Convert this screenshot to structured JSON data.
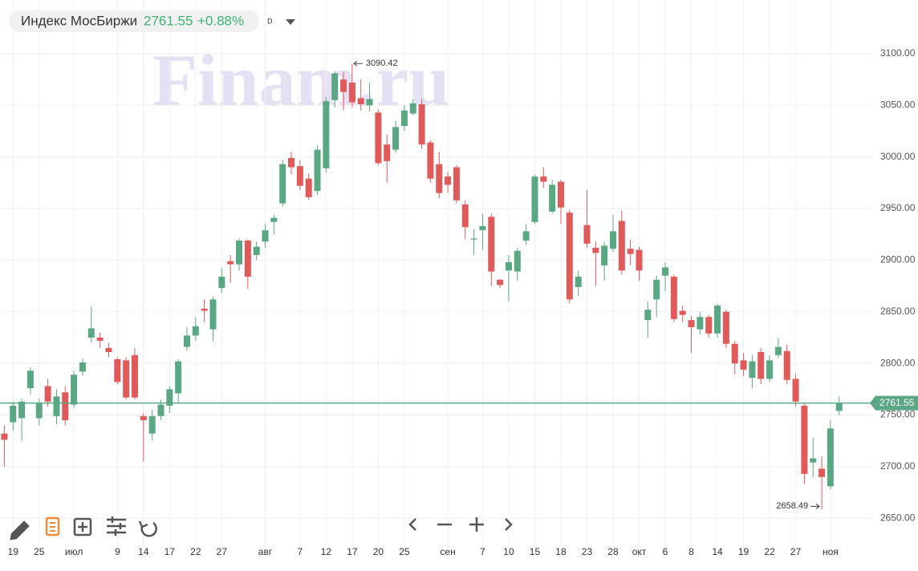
{
  "chart_data": {
    "type": "candlestick",
    "title": "Индекс МосБиржи",
    "price": "2761.55",
    "change": "+0.88%",
    "interval": "D",
    "watermark": "Finam.ru",
    "up_color": "#5aa883",
    "down_color": "#e05a5a",
    "grid": true,
    "xlim": [
      -0.5,
      97.5
    ],
    "ylim": [
      2630,
      3152
    ],
    "yticks": [
      {
        "value": 2650,
        "label": "2650.00"
      },
      {
        "value": 2700,
        "label": "2700.00"
      },
      {
        "value": 2750,
        "label": "2750.00"
      },
      {
        "value": 2800,
        "label": "2800.00"
      },
      {
        "value": 2850,
        "label": "2850.00"
      },
      {
        "value": 2900,
        "label": "2900.00"
      },
      {
        "value": 2950,
        "label": "2950.00"
      },
      {
        "value": 3000,
        "label": "3000.00"
      },
      {
        "value": 3050,
        "label": "3050.00"
      },
      {
        "value": 3100,
        "label": "3100.00"
      }
    ],
    "xticks": [
      {
        "value": 1,
        "label": "19"
      },
      {
        "value": 4,
        "label": "25"
      },
      {
        "value": 8,
        "label": "июл"
      },
      {
        "value": 13,
        "label": "9"
      },
      {
        "value": 16,
        "label": "14"
      },
      {
        "value": 19,
        "label": "17"
      },
      {
        "value": 22,
        "label": "22"
      },
      {
        "value": 25,
        "label": "27"
      },
      {
        "value": 30,
        "label": "авг"
      },
      {
        "value": 34,
        "label": "7"
      },
      {
        "value": 37,
        "label": "12"
      },
      {
        "value": 40,
        "label": "17"
      },
      {
        "value": 43,
        "label": "20"
      },
      {
        "value": 46,
        "label": "25"
      },
      {
        "value": 51,
        "label": "сен"
      },
      {
        "value": 55,
        "label": "7"
      },
      {
        "value": 58,
        "label": "10"
      },
      {
        "value": 61,
        "label": "15"
      },
      {
        "value": 64,
        "label": "18"
      },
      {
        "value": 67,
        "label": "23"
      },
      {
        "value": 70,
        "label": "28"
      },
      {
        "value": 73,
        "label": "окт"
      },
      {
        "value": 76,
        "label": "6"
      },
      {
        "value": 79,
        "label": "8"
      },
      {
        "value": 82,
        "label": "14"
      },
      {
        "value": 85,
        "label": "19"
      },
      {
        "value": 88,
        "label": "22"
      },
      {
        "value": 91,
        "label": "27"
      },
      {
        "value": 95,
        "label": "ноя"
      }
    ],
    "open": [
      2732,
      2743,
      2747,
      2776,
      2747,
      2778,
      2749,
      2772,
      2760,
      2792,
      2825,
      2825,
      2815,
      2804,
      2803,
      2808,
      2749,
      2732,
      2749,
      2759,
      2771,
      2816,
      2827,
      2853,
      2833,
      2873,
      2899,
      2896,
      2919,
      2905,
      2918,
      2937,
      2955,
      2999,
      2991,
      2979,
      2967,
      2989,
      3055,
      3075,
      3072,
      3057,
      3050,
      3043,
      3012,
      3007,
      3030,
      3042,
      3051,
      3014,
      2993,
      2981,
      2990,
      2954,
      2920,
      2929,
      2942,
      2881,
      2890,
      2889,
      2919,
      2937,
      2981,
      2947,
      2976,
      2946,
      2874,
      2934,
      2912,
      2895,
      2911,
      2938,
      2911,
      2910,
      2842,
      2862,
      2885,
      2884,
      2851,
      2842,
      2833,
      2845,
      2829,
      2850,
      2819,
      2803,
      2786,
      2811,
      2785,
      2808,
      2812,
      2785,
      2759,
      2704,
      2698,
      2681,
      2754
    ],
    "high": [
      2740,
      2763,
      2766,
      2796,
      2766,
      2785,
      2775,
      2778,
      2793,
      2805,
      2855,
      2830,
      2820,
      2806,
      2806,
      2815,
      2752,
      2755,
      2765,
      2778,
      2804,
      2835,
      2845,
      2862,
      2865,
      2892,
      2905,
      2921,
      2920,
      2918,
      2935,
      2944,
      2997,
      3005,
      2997,
      2984,
      3011,
      3058,
      3083,
      3082,
      3090.42,
      3075,
      3072,
      3046,
      3022,
      3035,
      3050,
      3056,
      3056,
      3016,
      3005,
      2985,
      2992,
      2958,
      2930,
      2945,
      2945,
      2882,
      2905,
      2912,
      2935,
      2983,
      2990,
      2978,
      2978,
      2949,
      2890,
      2968,
      2918,
      2918,
      2944,
      2948,
      2920,
      2913,
      2860,
      2885,
      2898,
      2886,
      2856,
      2846,
      2850,
      2847,
      2858,
      2852,
      2822,
      2810,
      2808,
      2815,
      2808,
      2825,
      2818,
      2790,
      2762,
      2728,
      2710,
      2745,
      2768
    ],
    "low": [
      2700,
      2735,
      2725,
      2770,
      2740,
      2758,
      2741,
      2740,
      2757,
      2788,
      2820,
      2815,
      2806,
      2780,
      2765,
      2765,
      2705,
      2725,
      2745,
      2752,
      2762,
      2812,
      2822,
      2840,
      2822,
      2868,
      2878,
      2890,
      2872,
      2900,
      2912,
      2925,
      2952,
      2983,
      2968,
      2958,
      2963,
      2985,
      3048,
      3045,
      3048,
      3045,
      3044,
      2992,
      2975,
      3004,
      3025,
      3040,
      3008,
      2975,
      2960,
      2965,
      2955,
      2920,
      2905,
      2910,
      2875,
      2873,
      2860,
      2880,
      2915,
      2935,
      2970,
      2945,
      2935,
      2858,
      2865,
      2912,
      2875,
      2880,
      2908,
      2886,
      2895,
      2880,
      2825,
      2845,
      2870,
      2840,
      2840,
      2810,
      2828,
      2825,
      2825,
      2815,
      2790,
      2788,
      2776,
      2780,
      2782,
      2805,
      2780,
      2758,
      2683,
      2690,
      2658.49,
      2678,
      2750
    ],
    "close": [
      2726,
      2759,
      2763,
      2793,
      2761,
      2763,
      2768,
      2745,
      2789,
      2801,
      2834,
      2822,
      2811,
      2782,
      2767,
      2767,
      2745,
      2749,
      2760,
      2775,
      2802,
      2827,
      2836,
      2851,
      2862,
      2884,
      2896,
      2919,
      2884,
      2913,
      2929,
      2941,
      2993,
      2990,
      2972,
      2961,
      3007,
      3054,
      3081,
      3063,
      3053,
      3051,
      3056,
      2994,
      2996,
      3029,
      3045,
      3052,
      3012,
      2979,
      2965,
      2973,
      2958,
      2932,
      2921,
      2933,
      2889,
      2876,
      2898,
      2909,
      2928,
      2981,
      2976,
      2973,
      2951,
      2862,
      2884,
      2916,
      2907,
      2914,
      2928,
      2890,
      2906,
      2890,
      2852,
      2881,
      2893,
      2843,
      2847,
      2835,
      2845,
      2829,
      2856,
      2819,
      2800,
      2794,
      2802,
      2785,
      2803,
      2816,
      2784,
      2763,
      2693,
      2708,
      2690,
      2737,
      2761.55
    ],
    "last_price": {
      "value": 2761.55,
      "label": "2761.55"
    },
    "annotations": [
      {
        "label": "3090.42"
      },
      {
        "label": "2658.49"
      }
    ]
  }
}
